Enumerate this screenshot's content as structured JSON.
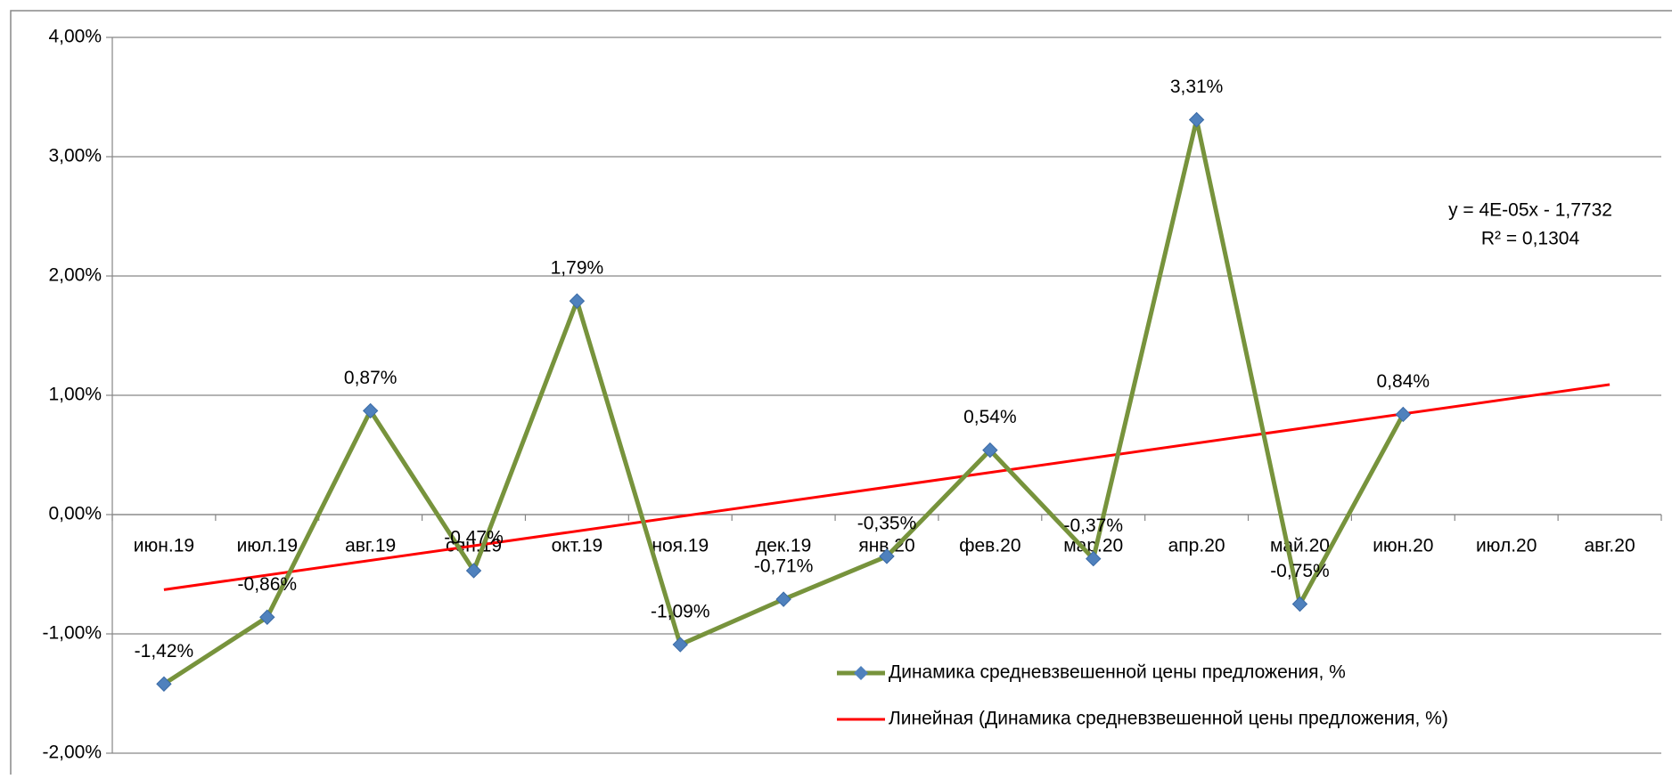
{
  "chart_data": {
    "type": "line",
    "categories": [
      "июн.19",
      "июл.19",
      "авг.19",
      "сен.19",
      "окт.19",
      "ноя.19",
      "дек.19",
      "янв.20",
      "фев.20",
      "мар.20",
      "апр.20",
      "май.20",
      "июн.20",
      "июл.20",
      "авг.20"
    ],
    "series": [
      {
        "name": "Динамика средневзвешенной цены предложения, %",
        "color": "#77933c",
        "marker_color": "#4f81bd",
        "values": [
          -1.42,
          -0.86,
          0.87,
          -0.47,
          1.79,
          -1.09,
          -0.71,
          -0.35,
          0.54,
          -0.37,
          3.31,
          -0.75,
          0.84,
          null,
          null
        ],
        "value_labels": [
          "-1,42%",
          "-0,86%",
          "0,87%",
          "-0,47%",
          "1,79%",
          "-1,09%",
          "-0,71%",
          "-0,35%",
          "0,54%",
          "-0,37%",
          "3,31%",
          "-0,75%",
          "0,84%",
          null,
          null
        ]
      }
    ],
    "trendline": {
      "name": "Линейная (Динамика средневзвешенной цены предложения, %)",
      "color": "#ff0000",
      "values": [
        -0.63,
        1.09
      ],
      "equation": "y = 4E-05x - 1,7732",
      "r_squared": "R² = 0,1304"
    },
    "ylim": [
      -2,
      4
    ],
    "yticks": [
      {
        "value": -2,
        "label": "-2,00%"
      },
      {
        "value": -1,
        "label": "-1,00%"
      },
      {
        "value": 0,
        "label": "0,00%"
      },
      {
        "value": 1,
        "label": "1,00%"
      },
      {
        "value": 2,
        "label": "2,00%"
      },
      {
        "value": 3,
        "label": "3,00%"
      },
      {
        "value": 4,
        "label": "4,00%"
      }
    ],
    "grid": true,
    "legend": "bottom-right"
  }
}
